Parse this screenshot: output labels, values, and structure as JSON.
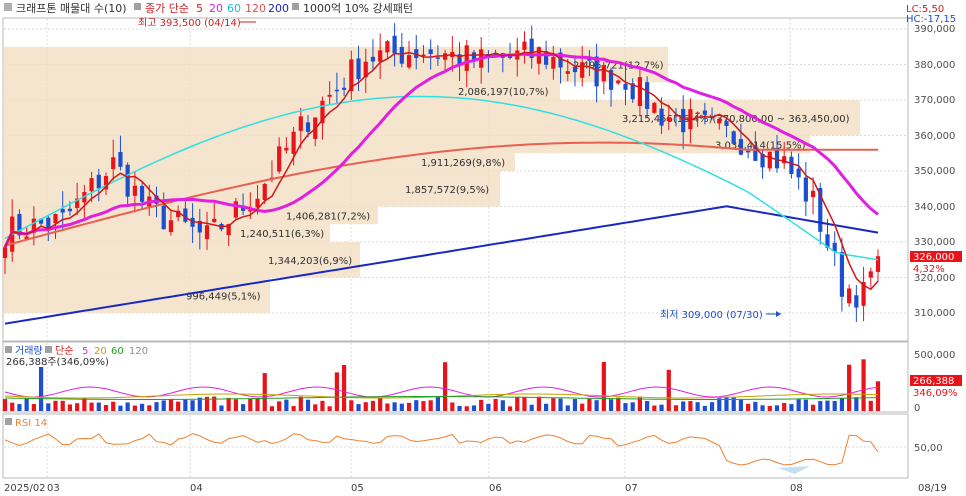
{
  "header": {
    "stock_name": "크래프톤 매물대 수(10)",
    "ma_label": "종가 단순",
    "ma_periods": [
      "5",
      "20",
      "60",
      "120",
      "200"
    ],
    "band_label": "1000억 10% 강세패턴",
    "lc": "LC:5,50",
    "hc": "HC:-17,15"
  },
  "annotations": {
    "high": "최고 393,500 (04/14)",
    "low": "최저 309,000 (07/30)"
  },
  "price_axis": {
    "ticks": [
      "390,000",
      "380,000",
      "370,000",
      "360,000",
      "350,000",
      "340,000",
      "330,000",
      "320,000",
      "310,000"
    ],
    "current": "326,000",
    "current_pct": "4,32%"
  },
  "volume_panel": {
    "title": "거래량",
    "ma_label": "단순",
    "ma_periods": [
      "5",
      "20",
      "60",
      "120"
    ],
    "summary": "266,388주(346,09%)",
    "ticks": [
      "500,000",
      "0"
    ],
    "current": "266,388",
    "current_pct": "346,09%"
  },
  "rsi_panel": {
    "title": "RSI 14",
    "tick": "50,00"
  },
  "time_axis": {
    "labels": [
      "2025/02",
      "03",
      "04",
      "05",
      "06",
      "07",
      "08",
      "08/19"
    ]
  },
  "volume_profile": [
    {
      "label": "996,449(5,1%)",
      "low": 310000,
      "high": 320000
    },
    {
      "label": "1,344,203(6,9%)",
      "low": 320000,
      "high": 330000
    },
    {
      "label": "1,240,511(6,3%)",
      "low": 330000,
      "high": 335000
    },
    {
      "label": "1,406,281(7,2%)",
      "low": 335000,
      "high": 340000
    },
    {
      "label": "1,857,572(9,5%)",
      "low": 340000,
      "high": 350000
    },
    {
      "label": "1,911,269(9,8%)",
      "low": 350000,
      "high": 355000
    },
    {
      "label": "3,034,414(15,5%)",
      "low": 355000,
      "high": 360000
    },
    {
      "label": "3,215,456(16,4%)(370,800,00 ~ 363,450,00)",
      "low": 360000,
      "high": 370000
    },
    {
      "label": "2,086,197(10,7%)",
      "low": 370000,
      "high": 375000
    },
    {
      "label": "2,495,721(12,7%)",
      "low": 375000,
      "high": 385000
    }
  ],
  "colors": {
    "up": "#e8141a",
    "down": "#1b4fd0",
    "ma5": "#d01818",
    "ma20": "#e020e0",
    "ma60": "#30e0e0",
    "ma120": "#e86050",
    "ma200": "#1828c0",
    "band": "#f3dfc6",
    "rsi": "#f08030"
  }
}
